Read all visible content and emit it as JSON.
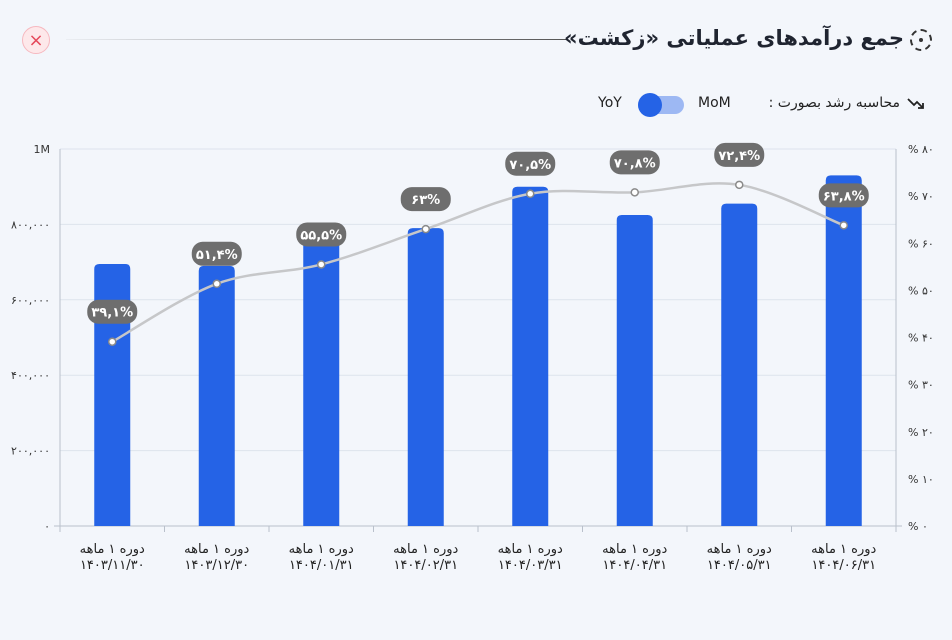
{
  "header": {
    "title": "جمع درآمدهای عملیاتی «زکشت»",
    "close_symbol": "×",
    "title_icon": "dashed-circle-icon",
    "close_icon": "close-icon"
  },
  "controls": {
    "growth_label": "محاسبه رشد بصورت :",
    "growth_icon": "trend-up-icon",
    "options": [
      "MoM",
      "YoY"
    ],
    "selected": "YoY"
  },
  "colors": {
    "bar": "#2563e6",
    "line": "#c6c7c9",
    "badge": "#6e6e6e",
    "grid": "#dde3ec",
    "background": "#f3f6fb"
  },
  "chart_data": {
    "type": "bar",
    "categories": [
      [
        "دوره ۱ ماهه",
        "۱۴۰۳/۱۱/۳۰"
      ],
      [
        "دوره ۱ ماهه",
        "۱۴۰۳/۱۲/۳۰"
      ],
      [
        "دوره ۱ ماهه",
        "۱۴۰۴/۰۱/۳۱"
      ],
      [
        "دوره ۱ ماهه",
        "۱۴۰۴/۰۲/۳۱"
      ],
      [
        "دوره ۱ ماهه",
        "۱۴۰۴/۰۳/۳۱"
      ],
      [
        "دوره ۱ ماهه",
        "۱۴۰۴/۰۴/۳۱"
      ],
      [
        "دوره ۱ ماهه",
        "۱۴۰۴/۰۵/۳۱"
      ],
      [
        "دوره ۱ ماهه",
        "۱۴۰۴/۰۶/۳۱"
      ]
    ],
    "values": [
      695000,
      690000,
      780000,
      790000,
      900000,
      825000,
      855000,
      930000
    ],
    "ylim": [
      0,
      1000000
    ],
    "yticks": [
      "۰",
      "۲۰۰,۰۰۰",
      "۴۰۰,۰۰۰",
      "۶۰۰,۰۰۰",
      "۸۰۰,۰۰۰",
      "1M"
    ],
    "growth": {
      "type": "line",
      "values": [
        39.1,
        51.4,
        55.5,
        63,
        70.5,
        70.8,
        72.4,
        63.8
      ],
      "labels": [
        "۳۹,۱%",
        "۵۱,۴%",
        "۵۵,۵%",
        "۶۳%",
        "۷۰,۵%",
        "۷۰,۸%",
        "۷۲,۴%",
        "۶۳,۸%"
      ],
      "ylim": [
        0,
        80
      ],
      "yticks": [
        "% ۰",
        "% ۱۰",
        "% ۲۰",
        "% ۳۰",
        "% ۴۰",
        "% ۵۰",
        "% ۶۰",
        "% ۷۰",
        "% ۸۰"
      ]
    },
    "grid": true
  }
}
